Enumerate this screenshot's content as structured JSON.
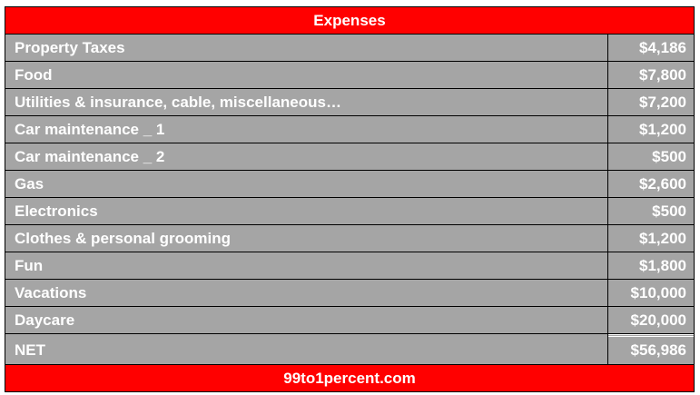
{
  "title": "Expenses",
  "rows": [
    {
      "label": "Property Taxes",
      "value": "$4,186"
    },
    {
      "label": "Food",
      "value": "$7,800"
    },
    {
      "label": "Utilities & insurance, cable, miscellaneous…",
      "value": "$7,200"
    },
    {
      "label": "Car maintenance _ 1",
      "value": "$1,200"
    },
    {
      "label": "Car maintenance _ 2",
      "value": "$500"
    },
    {
      "label": "Gas",
      "value": "$2,600"
    },
    {
      "label": "Electronics",
      "value": "$500"
    },
    {
      "label": "Clothes & personal grooming",
      "value": "$1,200"
    },
    {
      "label": "Fun",
      "value": "$1,800"
    },
    {
      "label": "Vacations",
      "value": "$10,000"
    },
    {
      "label": "Daycare",
      "value": "$20,000"
    }
  ],
  "net": {
    "label": "NET",
    "value": "$56,986"
  },
  "footer": "99to1percent.com",
  "colors": {
    "header": "#ff0000",
    "row": "#a5a5a5",
    "text": "#ffffff"
  }
}
